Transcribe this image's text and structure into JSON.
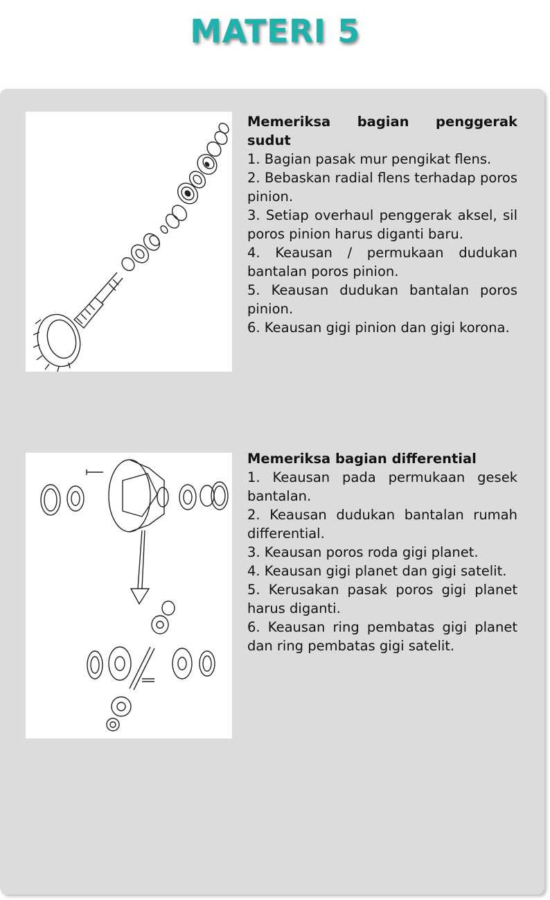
{
  "page": {
    "title": "MATERI 5",
    "accent_color": "#1fb2ad",
    "card_color": "#dcdcdc"
  },
  "sections": [
    {
      "heading": "Memeriksa bagian penggerak sudut",
      "items": [
        "1. Bagian pasak mur pengikat flens.",
        "2. Bebaskan radial flens terhadap poros pinion.",
        "3. Setiap overhaul penggerak aksel, sil poros pinion harus diganti baru.",
        "4. Keausan / permukaan dudukan bantalan poros pinion.",
        "5. Keausan dudukan bantalan poros pinion.",
        "6. Keausan gigi pinion dan gigi korona."
      ],
      "figure_icon": "pinion-gear-exploded-diagram"
    },
    {
      "heading": "Memeriksa bagian differential",
      "items": [
        "1. Keausan pada permukaan gesek bantalan.",
        "2. Keausan dudukan bantalan rumah differential.",
        "3. Keausan poros roda gigi planet.",
        "4. Keausan gigi planet dan gigi satelit.",
        "5. Kerusakan pasak poros gigi planet harus diganti.",
        "6. Keausan ring pembatas gigi planet dan ring pembatas gigi satelit."
      ],
      "figure_icon": "differential-exploded-diagram"
    }
  ]
}
